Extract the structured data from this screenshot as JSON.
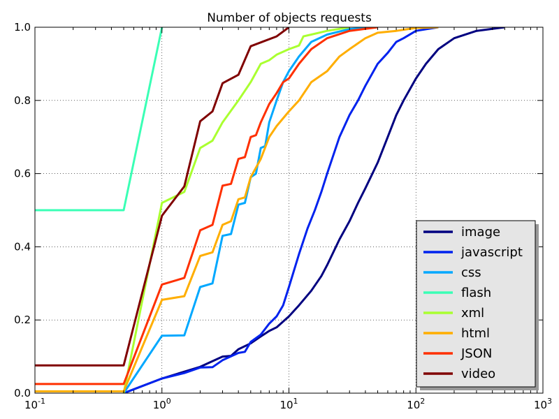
{
  "chart_data": {
    "type": "line",
    "title": "Number of objects requests",
    "xlabel": "",
    "ylabel": "",
    "xscale": "log",
    "xlim": [
      0.1,
      1000
    ],
    "ylim": [
      0,
      1
    ],
    "grid": true,
    "legend_position": "lower-right",
    "x_ticks": [
      {
        "value": 0.1,
        "base": "10",
        "exp": "-1"
      },
      {
        "value": 1,
        "base": "10",
        "exp": "0"
      },
      {
        "value": 10,
        "base": "10",
        "exp": "1"
      },
      {
        "value": 100,
        "base": "10",
        "exp": "2"
      },
      {
        "value": 1000,
        "base": "10",
        "exp": "3"
      }
    ],
    "y_ticks": [
      {
        "value": 0,
        "label": "0.0"
      },
      {
        "value": 0.2,
        "label": "0.2"
      },
      {
        "value": 0.4,
        "label": "0.4"
      },
      {
        "value": 0.6,
        "label": "0.6"
      },
      {
        "value": 0.8,
        "label": "0.8"
      },
      {
        "value": 1,
        "label": "1.0"
      }
    ],
    "series": [
      {
        "name": "image",
        "color": "#000080",
        "points": [
          [
            0.5,
            0.0
          ],
          [
            1,
            0.04
          ],
          [
            2,
            0.072
          ],
          [
            3,
            0.1
          ],
          [
            3.5,
            0.102
          ],
          [
            4,
            0.12
          ],
          [
            5,
            0.136
          ],
          [
            6,
            0.155
          ],
          [
            7,
            0.17
          ],
          [
            8,
            0.18
          ],
          [
            10,
            0.21
          ],
          [
            12,
            0.24
          ],
          [
            15,
            0.28
          ],
          [
            18,
            0.32
          ],
          [
            20,
            0.35
          ],
          [
            25,
            0.42
          ],
          [
            30,
            0.47
          ],
          [
            35,
            0.52
          ],
          [
            40,
            0.56
          ],
          [
            50,
            0.63
          ],
          [
            60,
            0.7
          ],
          [
            70,
            0.76
          ],
          [
            80,
            0.8
          ],
          [
            100,
            0.86
          ],
          [
            120,
            0.9
          ],
          [
            150,
            0.94
          ],
          [
            200,
            0.97
          ],
          [
            300,
            0.99
          ],
          [
            500,
            1.0
          ]
        ]
      },
      {
        "name": "javascript",
        "color": "#0022ee",
        "points": [
          [
            0.5,
            0.0
          ],
          [
            1,
            0.04
          ],
          [
            1.5,
            0.055
          ],
          [
            2,
            0.07
          ],
          [
            2.5,
            0.071
          ],
          [
            3,
            0.09
          ],
          [
            4,
            0.11
          ],
          [
            4.5,
            0.113
          ],
          [
            5,
            0.14
          ],
          [
            6,
            0.16
          ],
          [
            7,
            0.19
          ],
          [
            8,
            0.21
          ],
          [
            9,
            0.24
          ],
          [
            10,
            0.29
          ],
          [
            12,
            0.38
          ],
          [
            14,
            0.45
          ],
          [
            16,
            0.5
          ],
          [
            18,
            0.55
          ],
          [
            20,
            0.6
          ],
          [
            25,
            0.7
          ],
          [
            30,
            0.76
          ],
          [
            35,
            0.8
          ],
          [
            40,
            0.84
          ],
          [
            50,
            0.9
          ],
          [
            60,
            0.93
          ],
          [
            70,
            0.96
          ],
          [
            80,
            0.97
          ],
          [
            100,
            0.99
          ],
          [
            150,
            1.0
          ]
        ]
      },
      {
        "name": "css",
        "color": "#00a8ff",
        "points": [
          [
            0.5,
            0.0
          ],
          [
            1,
            0.157
          ],
          [
            1.5,
            0.158
          ],
          [
            2,
            0.29
          ],
          [
            2.5,
            0.3
          ],
          [
            3,
            0.43
          ],
          [
            3.5,
            0.435
          ],
          [
            4,
            0.515
          ],
          [
            4.5,
            0.52
          ],
          [
            5,
            0.59
          ],
          [
            5.5,
            0.6
          ],
          [
            6,
            0.67
          ],
          [
            6.5,
            0.675
          ],
          [
            7,
            0.74
          ],
          [
            8,
            0.8
          ],
          [
            9,
            0.85
          ],
          [
            10,
            0.88
          ],
          [
            12,
            0.92
          ],
          [
            15,
            0.96
          ],
          [
            20,
            0.98
          ],
          [
            30,
            0.995
          ],
          [
            50,
            1.0
          ]
        ]
      },
      {
        "name": "flash",
        "color": "#3affb5",
        "points": [
          [
            0.1,
            0.5
          ],
          [
            0.5,
            0.5
          ],
          [
            1,
            1.0
          ]
        ]
      },
      {
        "name": "xml",
        "color": "#aaff30",
        "points": [
          [
            0.5,
            0.0
          ],
          [
            1,
            0.52
          ],
          [
            1.5,
            0.55
          ],
          [
            2,
            0.67
          ],
          [
            2.5,
            0.69
          ],
          [
            3,
            0.74
          ],
          [
            4,
            0.8
          ],
          [
            5,
            0.85
          ],
          [
            6,
            0.9
          ],
          [
            7,
            0.91
          ],
          [
            8,
            0.925
          ],
          [
            10,
            0.94
          ],
          [
            12,
            0.95
          ],
          [
            13,
            0.975
          ],
          [
            15,
            0.98
          ],
          [
            20,
            0.99
          ],
          [
            30,
            1.0
          ]
        ]
      },
      {
        "name": "html",
        "color": "#ffae00",
        "points": [
          [
            0.1,
            0.005
          ],
          [
            0.5,
            0.005
          ],
          [
            1,
            0.255
          ],
          [
            1.5,
            0.265
          ],
          [
            2,
            0.375
          ],
          [
            2.5,
            0.385
          ],
          [
            3,
            0.46
          ],
          [
            3.5,
            0.47
          ],
          [
            4,
            0.53
          ],
          [
            4.5,
            0.535
          ],
          [
            5,
            0.59
          ],
          [
            6,
            0.64
          ],
          [
            7,
            0.7
          ],
          [
            8,
            0.73
          ],
          [
            10,
            0.77
          ],
          [
            12,
            0.8
          ],
          [
            15,
            0.85
          ],
          [
            20,
            0.88
          ],
          [
            25,
            0.92
          ],
          [
            30,
            0.94
          ],
          [
            40,
            0.97
          ],
          [
            50,
            0.985
          ],
          [
            70,
            0.99
          ],
          [
            100,
            0.998
          ],
          [
            150,
            1.0
          ]
        ]
      },
      {
        "name": "JSON",
        "color": "#ff3000",
        "points": [
          [
            0.1,
            0.025
          ],
          [
            0.5,
            0.025
          ],
          [
            1,
            0.297
          ],
          [
            1.5,
            0.315
          ],
          [
            2,
            0.445
          ],
          [
            2.5,
            0.46
          ],
          [
            3,
            0.567
          ],
          [
            3.5,
            0.572
          ],
          [
            4,
            0.64
          ],
          [
            4.5,
            0.645
          ],
          [
            5,
            0.7
          ],
          [
            5.5,
            0.705
          ],
          [
            6,
            0.74
          ],
          [
            7,
            0.79
          ],
          [
            8,
            0.82
          ],
          [
            9,
            0.85
          ],
          [
            10,
            0.86
          ],
          [
            12,
            0.9
          ],
          [
            15,
            0.94
          ],
          [
            20,
            0.97
          ],
          [
            30,
            0.99
          ],
          [
            50,
            1.0
          ]
        ]
      },
      {
        "name": "video",
        "color": "#800000",
        "points": [
          [
            0.1,
            0.076
          ],
          [
            0.5,
            0.076
          ],
          [
            1,
            0.485
          ],
          [
            1.5,
            0.565
          ],
          [
            2,
            0.743
          ],
          [
            2.5,
            0.77
          ],
          [
            3,
            0.847
          ],
          [
            4,
            0.87
          ],
          [
            5,
            0.948
          ],
          [
            8,
            0.975
          ],
          [
            10,
            1.0
          ]
        ]
      }
    ]
  }
}
